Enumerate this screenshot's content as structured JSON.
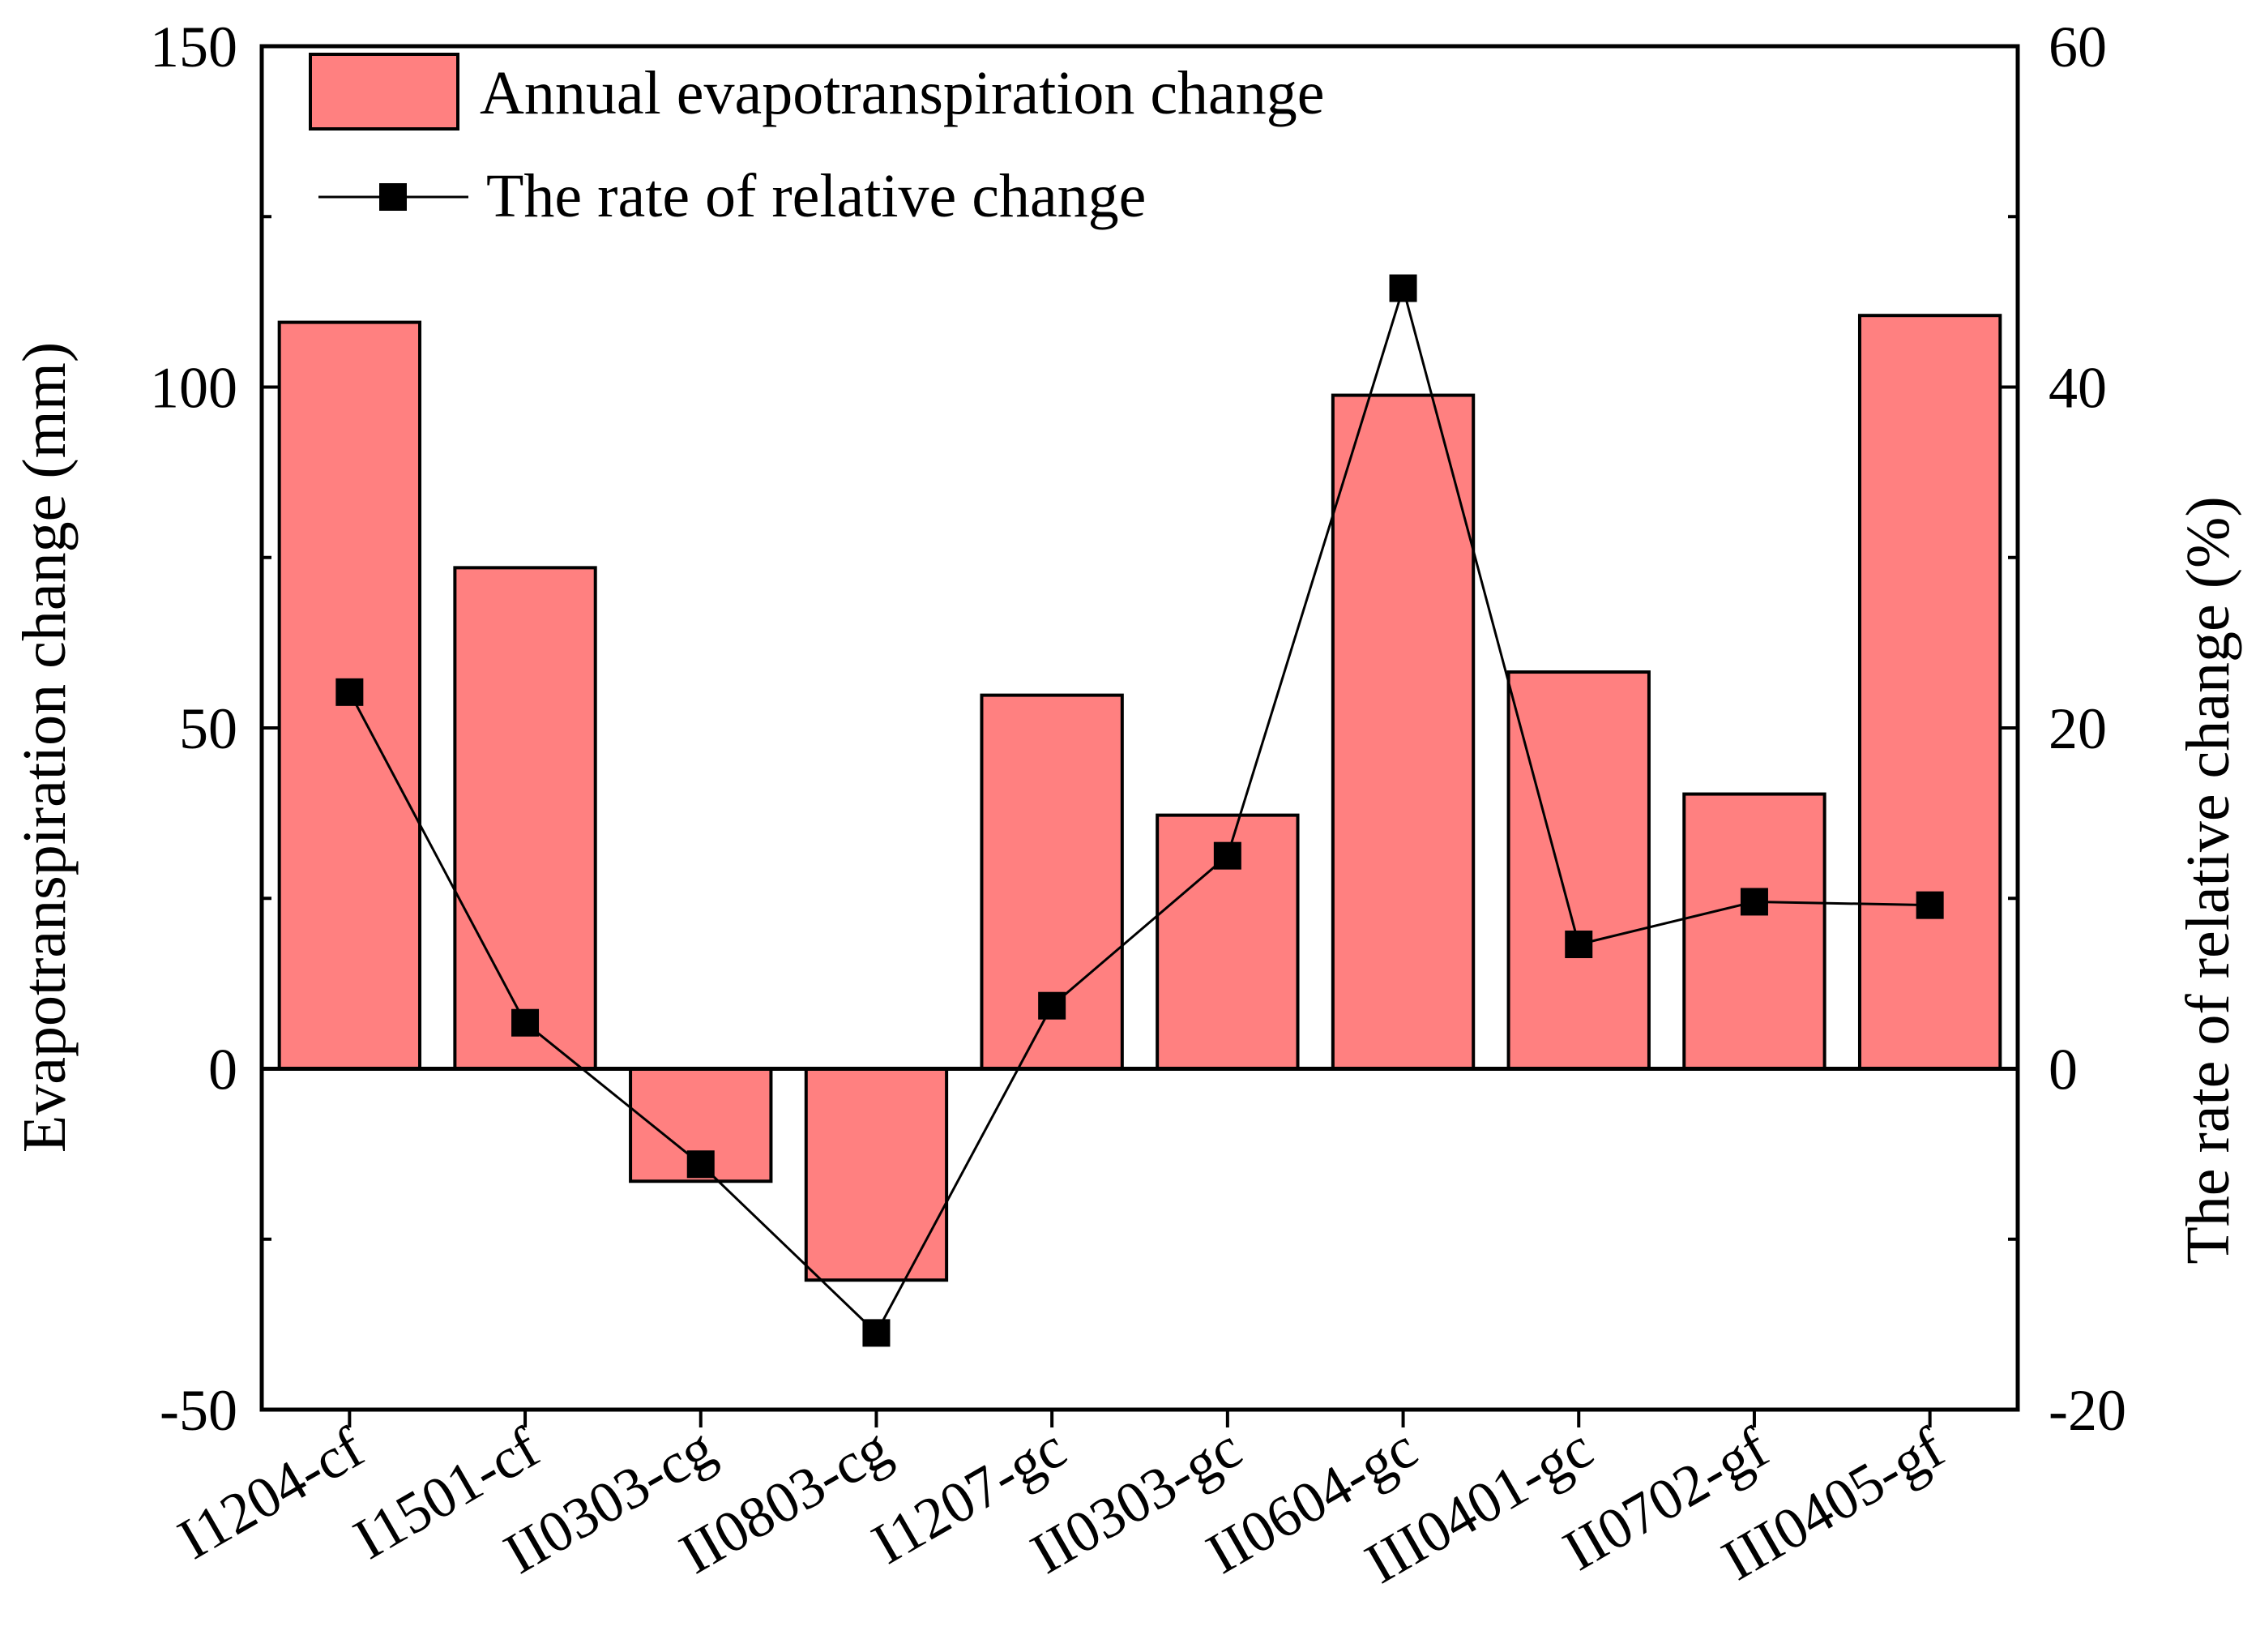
{
  "chart_data": {
    "type": "bar+line",
    "categories": [
      "I1204-cf",
      "I1501-cf",
      "II0303-cg",
      "II0803-cg",
      "I1207-gc",
      "II0303-gc",
      "II0604-gc",
      "III0401-gc",
      "II0702-gf",
      "III0405-gf"
    ],
    "series": [
      {
        "name": "Annual evapotranspiration change",
        "type": "bar",
        "axis": "left",
        "color": "#FF8080",
        "values": [
          109.5,
          73.5,
          -16.5,
          -31,
          54.8,
          37.2,
          98.8,
          58.2,
          40.3,
          110.5
        ]
      },
      {
        "name": "The rate of relative change",
        "type": "line",
        "axis": "right",
        "color": "#000000",
        "marker": "square",
        "values": [
          22.1,
          2.7,
          -5.6,
          -15.5,
          3.7,
          12.5,
          45.8,
          7.3,
          9.8,
          9.6
        ]
      }
    ],
    "ylabel_left": "Evapotranspiration change (mm)",
    "ylabel_right": "The rate of relative change (%)",
    "ylim_left": [
      -50,
      150
    ],
    "ylim_right": [
      -20,
      60
    ],
    "yticks_left": [
      "-50",
      "0",
      "50",
      "100",
      "150"
    ],
    "yticks_right": [
      "-20",
      "0",
      "20",
      "40",
      "60"
    ],
    "legend_position": "top-left",
    "grid": false
  }
}
